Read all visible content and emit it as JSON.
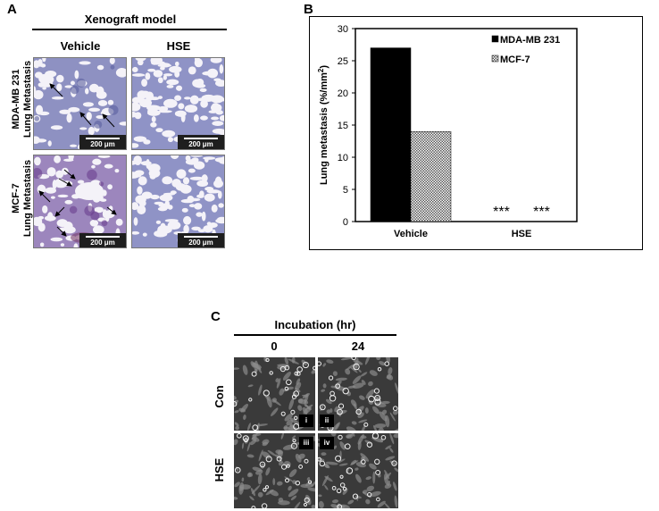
{
  "panel_a": {
    "letter": "A",
    "title": "Xenograft model",
    "col_labels": [
      "Vehicle",
      "HSE"
    ],
    "row_labels": [
      [
        "MDA-MB 231",
        "Lung Metastasis"
      ],
      [
        "MCF-7",
        "Lung Metastasis"
      ]
    ],
    "scale_bar": "200 μm"
  },
  "panel_b": {
    "letter": "B"
  },
  "chart_data": {
    "type": "bar",
    "categories": [
      "Vehicle",
      "HSE"
    ],
    "series": [
      {
        "name": "MDA-MB 231",
        "values": [
          27,
          0
        ],
        "color": "#000000",
        "pattern": "solid"
      },
      {
        "name": "MCF-7",
        "values": [
          14,
          0
        ],
        "color": "#7a7a7a",
        "pattern": "crosshatch"
      }
    ],
    "title": "",
    "xlabel": "",
    "ylabel": "Lung metastasis (%/mm²)",
    "ylabel_main": "Lung metastasis (%/mm",
    "ylabel_sup": "2",
    "ylabel_end": ")",
    "ylim": [
      0,
      30
    ],
    "yticks": [
      "0",
      "5",
      "10",
      "15",
      "20",
      "25",
      "30"
    ],
    "annotations": [
      "***",
      "***"
    ],
    "legend_position": "top-right",
    "grid": false
  },
  "panel_c": {
    "letter": "C",
    "title": "Incubation (hr)",
    "col_labels": [
      "0",
      "24"
    ],
    "row_labels": [
      "Con",
      "HSE"
    ],
    "cell_labels": [
      "i",
      "ii",
      "iii",
      "iv"
    ]
  }
}
